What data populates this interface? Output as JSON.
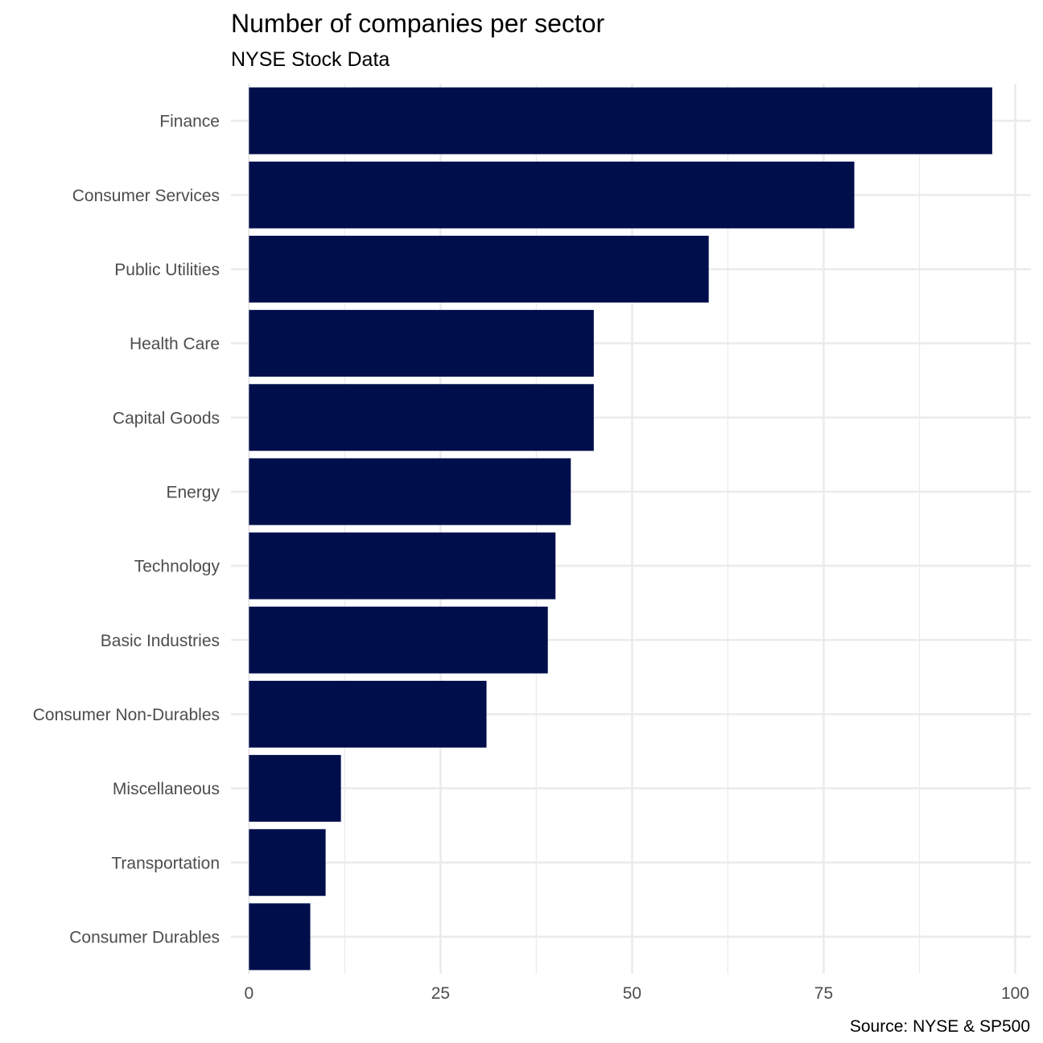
{
  "chart_data": {
    "type": "bar",
    "orientation": "horizontal",
    "title": "Number of companies per sector",
    "subtitle": "NYSE Stock Data",
    "caption": "Source: NYSE & SP500",
    "xlabel": "",
    "ylabel": "",
    "categories": [
      "Finance",
      "Consumer Services",
      "Public Utilities",
      "Health Care",
      "Capital Goods",
      "Energy",
      "Technology",
      "Basic Industries",
      "Consumer Non-Durables",
      "Miscellaneous",
      "Transportation",
      "Consumer Durables"
    ],
    "values": [
      97,
      79,
      60,
      45,
      45,
      42,
      40,
      39,
      31,
      12,
      10,
      8
    ],
    "xlim": [
      -2.35,
      102.05
    ],
    "xticks": [
      0,
      25,
      50,
      75,
      100
    ],
    "xtick_labels": [
      "0",
      "25",
      "50",
      "75",
      "100"
    ],
    "grid": true,
    "legend": "none",
    "bar_color": "#000e4c",
    "grid_color": "#ebebeb"
  }
}
